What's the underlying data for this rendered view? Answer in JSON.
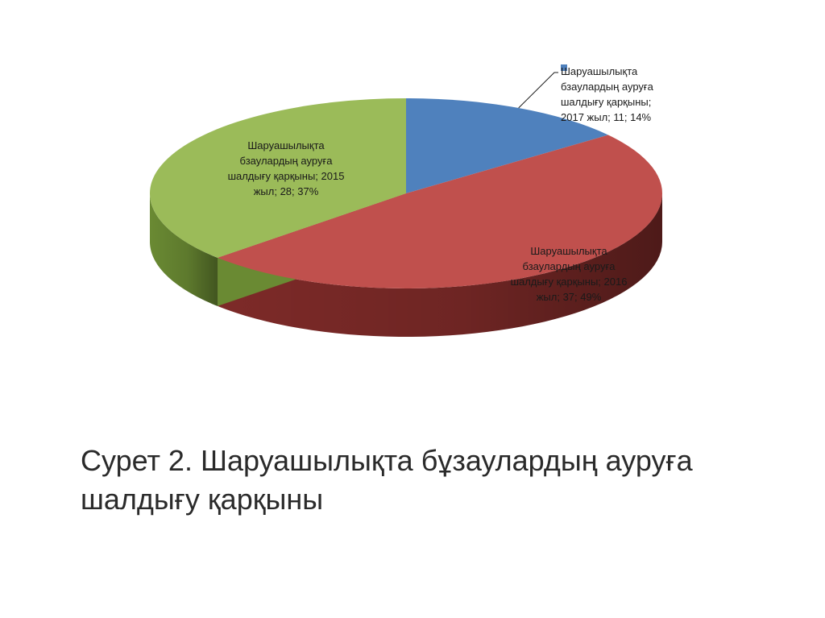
{
  "chart_data": {
    "type": "pie",
    "three_d": true,
    "start_angle_deg": 90,
    "direction": "clockwise",
    "slices": [
      {
        "name": "Шаруашылықта бзаулардың ауруға шалдығу қарқыны; 2017 жыл",
        "value": 11,
        "percent": 14,
        "color": "#4f81bd",
        "side_color": "#2e4e76",
        "label": "Шаруашылықта\nбзаулардың ауруға\nшалдығу қарқыны;\n2017 жыл; 11; 14%"
      },
      {
        "name": "Шаруашылықта бзаулардың ауруға шалдығу қарқыны; 2016 жыл",
        "value": 37,
        "percent": 49,
        "color": "#c0504d",
        "side_color": "#7d2a28",
        "label": "Шаруашылықта\nбзаулардың ауруға\nшалдығу қарқыны; 2016\nжыл; 37; 49%"
      },
      {
        "name": "Шаруашылықта бзаулардың ауруға шалдығу қарқыны; 2015 жыл",
        "value": 28,
        "percent": 37,
        "color": "#9bbb59",
        "side_color": "#6a8a33",
        "label": "Шаруашылықта\nбзаулардың ауруға\nшалдығу қарқыны; 2015\nжыл; 28; 37%"
      }
    ]
  },
  "caption": "Сурет 2. Шаруашылықта бұзаулардың\nауруға шалдығу қарқыны"
}
